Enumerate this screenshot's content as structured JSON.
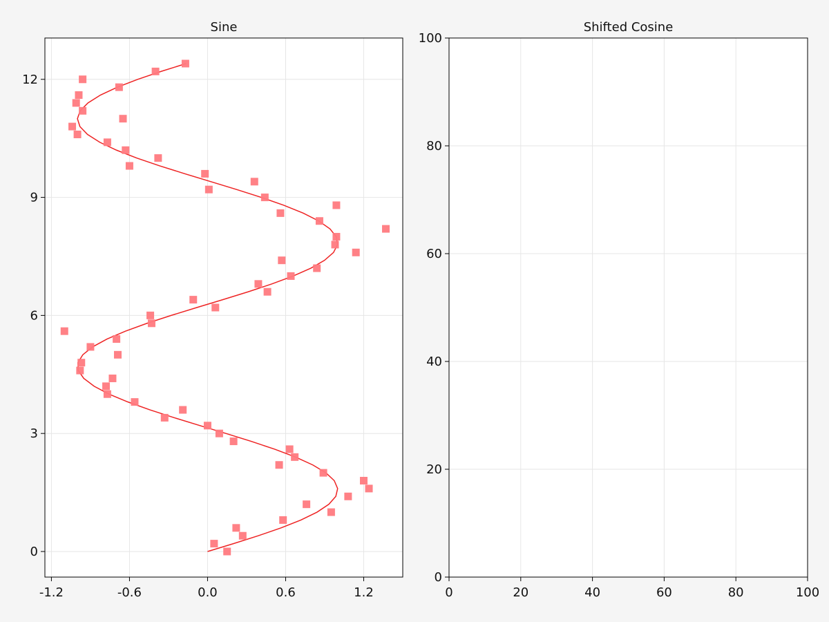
{
  "chart_data": [
    {
      "type": "scatter",
      "title": "Sine",
      "xlabel": "",
      "ylabel": "",
      "xlim": [
        -1.25,
        1.5
      ],
      "ylim": [
        -0.65,
        13.05
      ],
      "xticks": [
        -1.2,
        -0.6,
        0.0,
        0.6,
        1.2
      ],
      "xtick_labels": [
        "-1.2",
        "-0.6",
        "0.0",
        "0.6",
        "1.2"
      ],
      "yticks": [
        0,
        3,
        6,
        9,
        12
      ],
      "ytick_labels": [
        "0",
        "3",
        "6",
        "9",
        "12"
      ],
      "grid": true,
      "series": [
        {
          "kind": "line",
          "color": "#ee2222",
          "curve": {
            "function": "sin",
            "t_start": 0,
            "t_end": 12.4,
            "t_step": 0.2
          }
        },
        {
          "kind": "markers",
          "marker": "square",
          "color": "#ff7a80",
          "points": [
            [
              0.15,
              0.0
            ],
            [
              0.05,
              0.2
            ],
            [
              0.27,
              0.4
            ],
            [
              0.22,
              0.6
            ],
            [
              0.58,
              0.8
            ],
            [
              0.95,
              1.0
            ],
            [
              0.76,
              1.2
            ],
            [
              1.08,
              1.4
            ],
            [
              1.24,
              1.6
            ],
            [
              1.2,
              1.8
            ],
            [
              0.89,
              2.0
            ],
            [
              0.55,
              2.2
            ],
            [
              0.67,
              2.4
            ],
            [
              0.63,
              2.6
            ],
            [
              0.2,
              2.8
            ],
            [
              0.09,
              3.0
            ],
            [
              0.0,
              3.2
            ],
            [
              -0.33,
              3.4
            ],
            [
              -0.19,
              3.6
            ],
            [
              -0.56,
              3.8
            ],
            [
              -0.77,
              4.0
            ],
            [
              -0.78,
              4.2
            ],
            [
              -0.73,
              4.4
            ],
            [
              -0.98,
              4.6
            ],
            [
              -0.97,
              4.8
            ],
            [
              -0.69,
              5.0
            ],
            [
              -0.9,
              5.2
            ],
            [
              -0.7,
              5.4
            ],
            [
              -1.1,
              5.6
            ],
            [
              -0.43,
              5.8
            ],
            [
              -0.44,
              6.0
            ],
            [
              0.06,
              6.2
            ],
            [
              -0.11,
              6.4
            ],
            [
              0.46,
              6.6
            ],
            [
              0.39,
              6.8
            ],
            [
              0.64,
              7.0
            ],
            [
              0.84,
              7.2
            ],
            [
              0.57,
              7.4
            ],
            [
              1.14,
              7.6
            ],
            [
              0.98,
              7.8
            ],
            [
              0.99,
              8.0
            ],
            [
              1.37,
              8.2
            ],
            [
              0.86,
              8.4
            ],
            [
              0.56,
              8.6
            ],
            [
              0.99,
              8.8
            ],
            [
              0.44,
              9.0
            ],
            [
              0.01,
              9.2
            ],
            [
              0.36,
              9.4
            ],
            [
              -0.02,
              9.6
            ],
            [
              -0.6,
              9.8
            ],
            [
              -0.38,
              10.0
            ],
            [
              -0.63,
              10.2
            ],
            [
              -0.77,
              10.4
            ],
            [
              -1.0,
              10.6
            ],
            [
              -1.04,
              10.8
            ],
            [
              -0.65,
              11.0
            ],
            [
              -0.96,
              11.2
            ],
            [
              -1.01,
              11.4
            ],
            [
              -0.99,
              11.6
            ],
            [
              -0.68,
              11.8
            ],
            [
              -0.96,
              12.0
            ],
            [
              -0.4,
              12.2
            ],
            [
              -0.17,
              12.4
            ]
          ]
        }
      ]
    },
    {
      "type": "scatter",
      "title": "Shifted Cosine",
      "xlabel": "",
      "ylabel": "",
      "xlim": [
        0,
        100
      ],
      "ylim": [
        0,
        100
      ],
      "xticks": [
        0,
        20,
        40,
        60,
        80,
        100
      ],
      "xtick_labels": [
        "0",
        "20",
        "40",
        "60",
        "80",
        "100"
      ],
      "yticks": [
        0,
        20,
        40,
        60,
        80,
        100
      ],
      "ytick_labels": [
        "0",
        "20",
        "40",
        "60",
        "80",
        "100"
      ],
      "grid": true,
      "series": []
    }
  ],
  "colors": {
    "background": "#f5f5f5",
    "plot_background": "#ffffff",
    "grid": "#e6e6e6",
    "axis": "#000000"
  }
}
